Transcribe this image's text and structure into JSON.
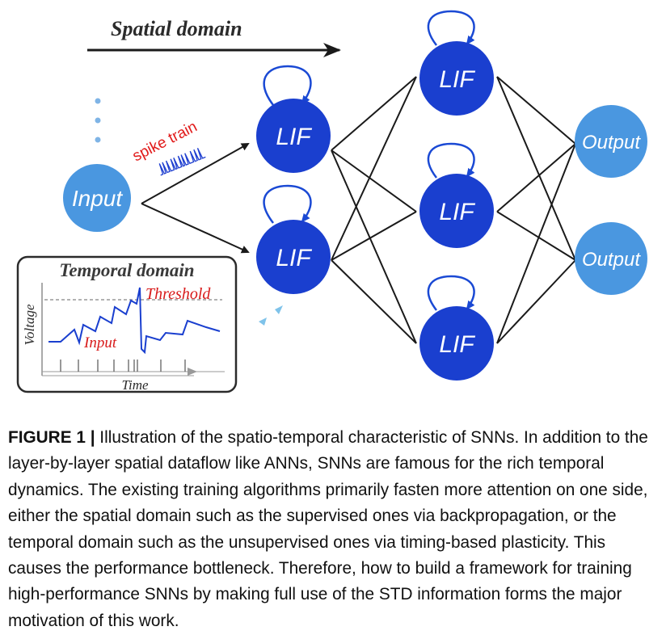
{
  "diagram": {
    "spatial_label": "Spatial domain",
    "input_label": "Input",
    "lif_label": "LIF",
    "output_label": "Output",
    "spike_train_label": "spike train",
    "temporal_box": {
      "title": "Temporal domain",
      "threshold_label": "Threshold",
      "input_label": "Input",
      "ylabel": "Voltage",
      "xlabel": "Time"
    },
    "colors": {
      "lif_node": "#1a3fcf",
      "io_node": "#4a97e0",
      "loop": "#1a49d4",
      "edges": "#1a1a1a",
      "spike_label": "#e11a1a",
      "threshold_text": "#d81a1a",
      "dots": "#7fb4e6"
    }
  },
  "caption": {
    "label": "FIGURE 1 |",
    "text": " Illustration of the spatio-temporal characteristic of SNNs. In addition to the layer-by-layer spatial dataflow like ANNs, SNNs are famous for the rich temporal dynamics. The existing training algorithms primarily fasten more attention on one side, either the spatial domain such as the supervised ones via backpropagation, or the temporal domain such as the unsupervised ones via timing-based plasticity. This causes the performance bottleneck. Therefore, how to build a framework for training high-performance SNNs by making full use of the STD information forms the major motivation of this work."
  }
}
